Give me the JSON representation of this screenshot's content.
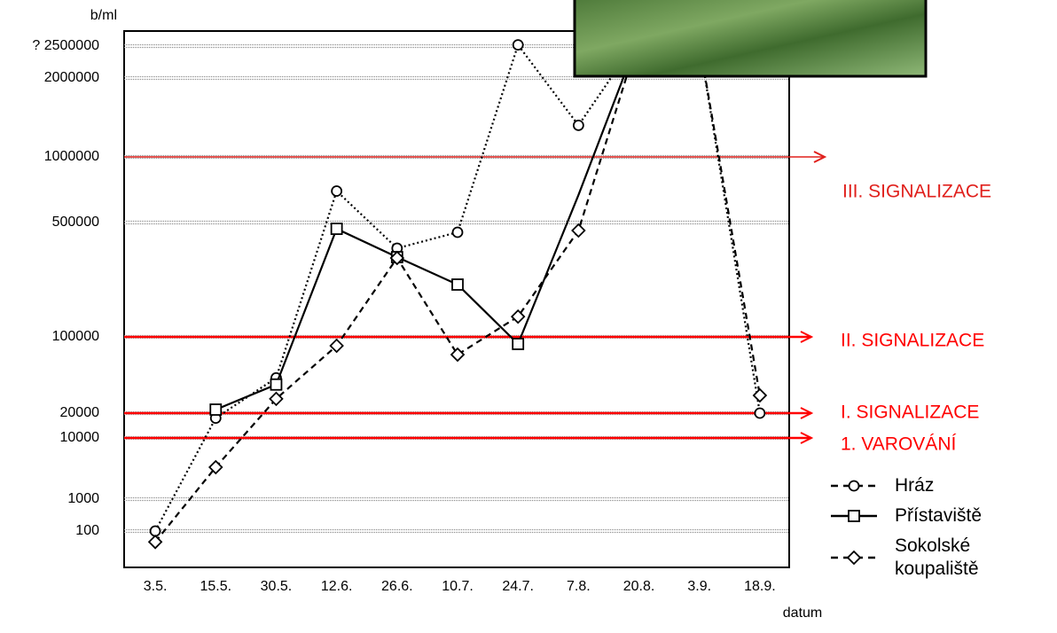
{
  "chart_data": {
    "type": "line",
    "y_label": "b/ml",
    "x_label": "datum",
    "categories": [
      "3.5.",
      "15.5.",
      "30.5.",
      "12.6.",
      "26.6.",
      "10.7.",
      "24.7.",
      "7.8.",
      "20.8.",
      "3.9.",
      "18.9."
    ],
    "ylim": [
      0,
      3000000
    ],
    "yticks": [
      100,
      1000,
      10000,
      20000,
      100000,
      500000,
      1000000,
      2000000,
      {
        "value": 2500000,
        "label": "? 2500000"
      }
    ],
    "grid": true,
    "series": [
      {
        "name": "Hráz",
        "color": "#000000",
        "marker": "circle",
        "line_style": "dotted",
        "values": [
          100,
          18000,
          57000,
          740000,
          410000,
          466000,
          2540000,
          1400000,
          2800000,
          2600000,
          20000
        ]
      },
      {
        "name": "Přístaviště",
        "color": "#000000",
        "marker": "square",
        "line_style": "solid",
        "values": [
          null,
          23700,
          50000,
          478000,
          379000,
          283000,
          92600,
          710000,
          2800000,
          2700000,
          null
        ]
      },
      {
        "name": "Sokolské koupaliště",
        "color": "#000000",
        "marker": "diamond",
        "line_style": "dashed",
        "values": [
          70,
          5700,
          35000,
          90700,
          376000,
          81400,
          171000,
          472000,
          2800000,
          2600000,
          38600
        ]
      }
    ],
    "thresholds": [
      {
        "value": 1000000,
        "label": "III. SIGNALIZACE",
        "color": "#e0201c"
      },
      {
        "value": 100000,
        "label": "II. SIGNALIZACE",
        "color": "#ff0000"
      },
      {
        "value": 20000,
        "label": "I. SIGNALIZACE",
        "color": "#ff0000"
      },
      {
        "value": 10000,
        "label": "1. VAROVÁNÍ",
        "color": "#ff0000"
      }
    ]
  }
}
